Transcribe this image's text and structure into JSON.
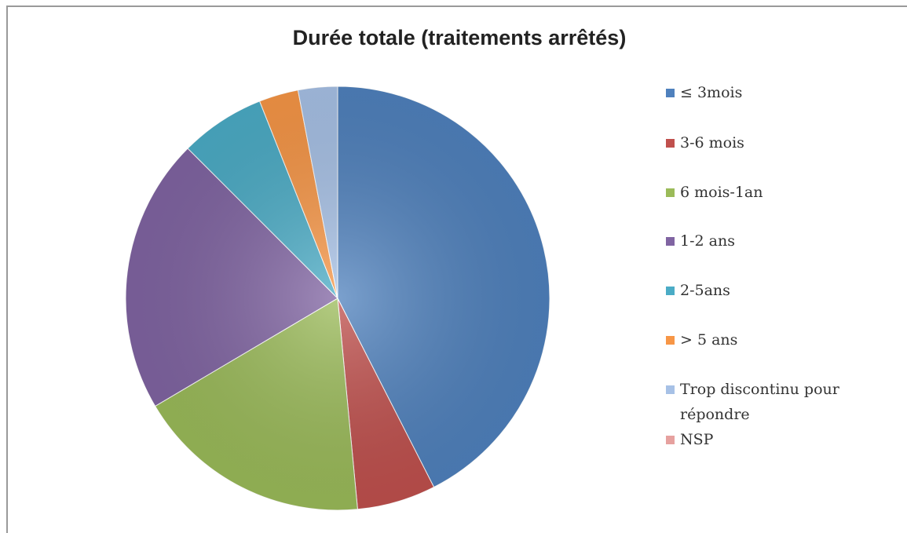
{
  "chart_data": {
    "type": "pie",
    "title": "Durée totale (traitements arrêtés)",
    "categories": [
      "≤ 3mois",
      "3-6 mois",
      "6 mois-1an",
      "1-2 ans",
      "2-5ans",
      "> 5 ans",
      "Trop discontinu pour répondre",
      "NSP"
    ],
    "values": [
      42.5,
      6,
      18,
      21,
      6.5,
      3,
      3,
      0
    ],
    "colors": [
      "#4f81bd",
      "#c0504d",
      "#9bbb59",
      "#8064a2",
      "#4bacc6",
      "#f79646",
      "#a7c1e6",
      "#e6a19f"
    ],
    "legend": "right"
  }
}
